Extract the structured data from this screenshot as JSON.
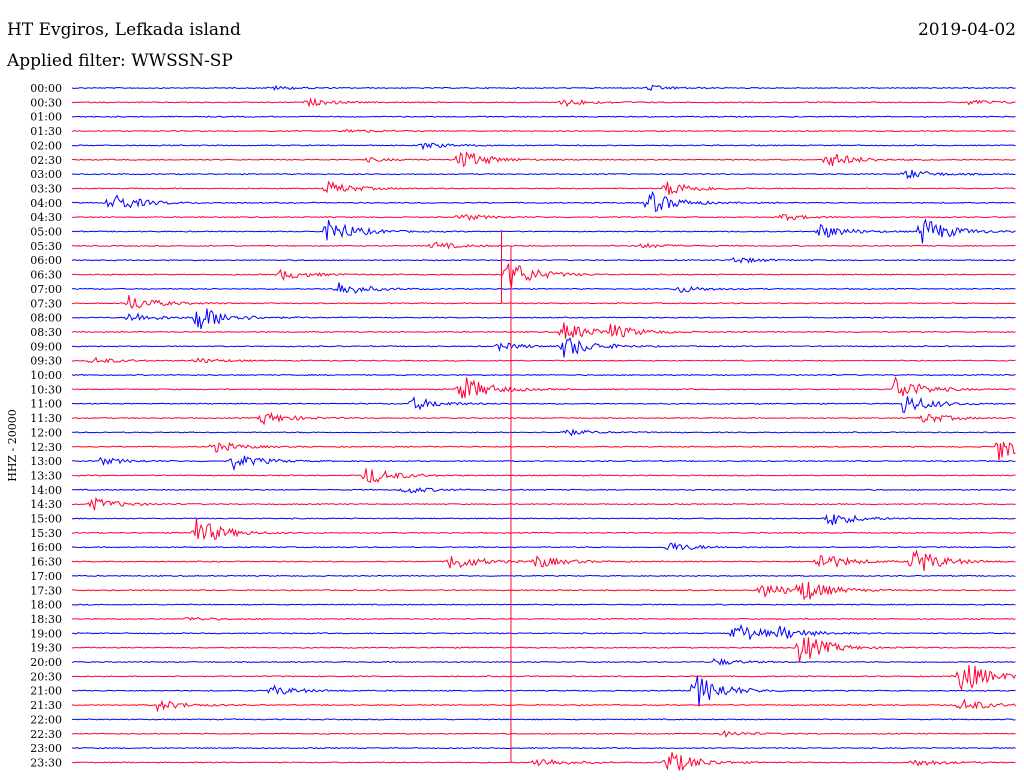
{
  "header": {
    "station": "HT Evgiros, Lefkada island",
    "date": "2019-04-02",
    "filter": "Applied filter: WWSSN-SP"
  },
  "chart_data": {
    "type": "line",
    "title": "",
    "ylabel": "HHZ - 20000",
    "xlabel": "",
    "trace_colors": [
      "#0000ff",
      "#ff0033"
    ],
    "rows": [
      "00:00",
      "00:30",
      "01:00",
      "01:30",
      "02:00",
      "02:30",
      "03:00",
      "03:30",
      "04:00",
      "04:30",
      "05:00",
      "05:30",
      "06:00",
      "06:30",
      "07:00",
      "07:30",
      "08:00",
      "08:30",
      "09:00",
      "09:30",
      "10:00",
      "10:30",
      "11:00",
      "11:30",
      "12:00",
      "12:30",
      "13:00",
      "13:30",
      "14:00",
      "14:30",
      "15:00",
      "15:30",
      "16:00",
      "16:30",
      "17:00",
      "17:30",
      "18:00",
      "18:30",
      "19:00",
      "19:30",
      "20:00",
      "20:30",
      "21:00",
      "21:30",
      "22:00",
      "22:30",
      "23:00",
      "23:30"
    ],
    "events": [
      {
        "row": 0,
        "t": 0.21,
        "amp": 0.3
      },
      {
        "row": 0,
        "t": 0.61,
        "amp": 0.4
      },
      {
        "row": 1,
        "t": 0.25,
        "amp": 0.5
      },
      {
        "row": 1,
        "t": 0.52,
        "amp": 0.6
      },
      {
        "row": 1,
        "t": 0.95,
        "amp": 0.4
      },
      {
        "row": 3,
        "t": 0.29,
        "amp": 0.3
      },
      {
        "row": 4,
        "t": 0.37,
        "amp": 0.5
      },
      {
        "row": 5,
        "t": 0.31,
        "amp": 0.3
      },
      {
        "row": 5,
        "t": 0.41,
        "amp": 1.6
      },
      {
        "row": 5,
        "t": 0.8,
        "amp": 1.2
      },
      {
        "row": 6,
        "t": 0.88,
        "amp": 0.8
      },
      {
        "row": 7,
        "t": 0.27,
        "amp": 1.0
      },
      {
        "row": 7,
        "t": 0.63,
        "amp": 1.2
      },
      {
        "row": 8,
        "t": 0.04,
        "amp": 1.6
      },
      {
        "row": 8,
        "t": 0.61,
        "amp": 1.8
      },
      {
        "row": 9,
        "t": 0.41,
        "amp": 0.5
      },
      {
        "row": 9,
        "t": 0.75,
        "amp": 0.5
      },
      {
        "row": 10,
        "t": 0.27,
        "amp": 2.0
      },
      {
        "row": 10,
        "t": 0.79,
        "amp": 1.2
      },
      {
        "row": 10,
        "t": 0.9,
        "amp": 2.2
      },
      {
        "row": 11,
        "t": 0.38,
        "amp": 0.6
      },
      {
        "row": 11,
        "t": 0.6,
        "amp": 0.4
      },
      {
        "row": 12,
        "t": 0.7,
        "amp": 0.5
      },
      {
        "row": 13,
        "t": 0.22,
        "amp": 0.8
      },
      {
        "row": 13,
        "t": 0.46,
        "amp": 2.4
      },
      {
        "row": 14,
        "t": 0.28,
        "amp": 1.2
      },
      {
        "row": 14,
        "t": 0.64,
        "amp": 0.6
      },
      {
        "row": 15,
        "t": 0.06,
        "amp": 1.2
      },
      {
        "row": 16,
        "t": 0.06,
        "amp": 0.8
      },
      {
        "row": 16,
        "t": 0.13,
        "amp": 2.2
      },
      {
        "row": 17,
        "t": 0.52,
        "amp": 1.5
      },
      {
        "row": 17,
        "t": 0.57,
        "amp": 1.0
      },
      {
        "row": 18,
        "t": 0.45,
        "amp": 0.6
      },
      {
        "row": 18,
        "t": 0.52,
        "amp": 1.8
      },
      {
        "row": 19,
        "t": 0.02,
        "amp": 0.5
      },
      {
        "row": 19,
        "t": 0.13,
        "amp": 0.4
      },
      {
        "row": 21,
        "t": 0.41,
        "amp": 2.3
      },
      {
        "row": 21,
        "t": 0.87,
        "amp": 2.0
      },
      {
        "row": 22,
        "t": 0.36,
        "amp": 1.0
      },
      {
        "row": 22,
        "t": 0.88,
        "amp": 1.6
      },
      {
        "row": 23,
        "t": 0.2,
        "amp": 1.0
      },
      {
        "row": 23,
        "t": 0.9,
        "amp": 0.8
      },
      {
        "row": 24,
        "t": 0.52,
        "amp": 0.5
      },
      {
        "row": 25,
        "t": 0.15,
        "amp": 0.8
      },
      {
        "row": 25,
        "t": 0.98,
        "amp": 2.2
      },
      {
        "row": 26,
        "t": 0.03,
        "amp": 0.5
      },
      {
        "row": 26,
        "t": 0.17,
        "amp": 1.2
      },
      {
        "row": 27,
        "t": 0.31,
        "amp": 1.5
      },
      {
        "row": 28,
        "t": 0.35,
        "amp": 0.6
      },
      {
        "row": 29,
        "t": 0.02,
        "amp": 1.0
      },
      {
        "row": 30,
        "t": 0.8,
        "amp": 1.2
      },
      {
        "row": 31,
        "t": 0.13,
        "amp": 2.3
      },
      {
        "row": 32,
        "t": 0.63,
        "amp": 0.8
      },
      {
        "row": 33,
        "t": 0.4,
        "amp": 1.4
      },
      {
        "row": 33,
        "t": 0.49,
        "amp": 1.0
      },
      {
        "row": 33,
        "t": 0.79,
        "amp": 1.5
      },
      {
        "row": 33,
        "t": 0.89,
        "amp": 2.2
      },
      {
        "row": 35,
        "t": 0.73,
        "amp": 1.2
      },
      {
        "row": 35,
        "t": 0.77,
        "amp": 1.8
      },
      {
        "row": 37,
        "t": 0.12,
        "amp": 0.3
      },
      {
        "row": 38,
        "t": 0.7,
        "amp": 1.8
      },
      {
        "row": 38,
        "t": 0.75,
        "amp": 0.8
      },
      {
        "row": 39,
        "t": 0.77,
        "amp": 2.4
      },
      {
        "row": 40,
        "t": 0.68,
        "amp": 0.5
      },
      {
        "row": 41,
        "t": 0.94,
        "amp": 2.8
      },
      {
        "row": 42,
        "t": 0.21,
        "amp": 0.8
      },
      {
        "row": 42,
        "t": 0.66,
        "amp": 2.6
      },
      {
        "row": 43,
        "t": 0.09,
        "amp": 0.8
      },
      {
        "row": 43,
        "t": 0.94,
        "amp": 1.0
      },
      {
        "row": 45,
        "t": 0.69,
        "amp": 0.4
      },
      {
        "row": 47,
        "t": 0.49,
        "amp": 0.8
      },
      {
        "row": 47,
        "t": 0.63,
        "amp": 2.0
      },
      {
        "row": 47,
        "t": 0.89,
        "amp": 0.6
      }
    ],
    "long_spikes": [
      {
        "t": 0.465,
        "row_start": 11,
        "row_end": 47
      },
      {
        "t": 0.455,
        "row_start": 10,
        "row_end": 15
      }
    ]
  }
}
